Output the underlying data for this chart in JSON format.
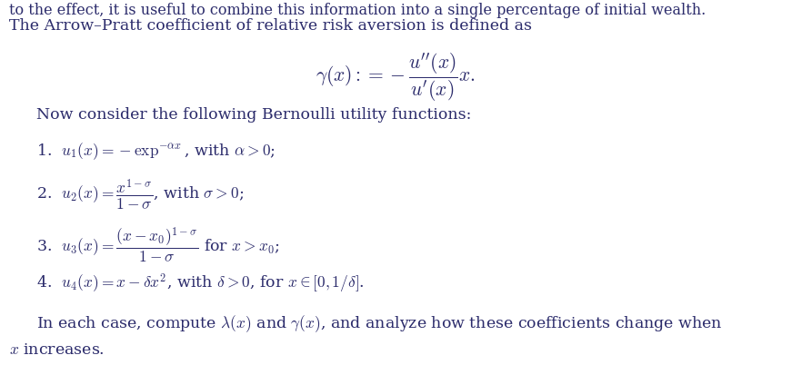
{
  "background_color": "#ffffff",
  "text_color": "#2b2b6b",
  "top_partial_text": "to the effect, it is useful to combine this information into a single percentage of initial wealth.",
  "title_line": "The Arrow–Pratt coefficient of relative risk aversion is defined as",
  "formula": "$\\gamma(x) := -\\dfrac{u''(x)}{u'(x)}x.$",
  "bernoulli_intro": "Now consider the following Bernoulli utility functions:",
  "item1": "1.\\;\\; $u_1(x) = -\\exp^{-\\alpha x}$, with $\\alpha > 0$;",
  "item2": "2.\\;\\; $u_2(x) = \\dfrac{x^{1-\\sigma}}{1-\\sigma}$, with $\\sigma > 0$;",
  "item3": "3.\\;\\; $u_3(x) = \\dfrac{(x-x_0)^{1-\\sigma}}{1-\\sigma}$ for $x > x_0$;",
  "item4": "4.\\;\\; $u_4(x) = x - \\delta x^2$, with $\\delta > 0$, for $x \\in [0, 1/\\delta]$.",
  "footer1": "In each case, compute $\\lambda(x)$ and $\\gamma(x)$, and analyze how these coefficients change when",
  "footer2": "$x$ increases.",
  "font_size_main": 12.5,
  "font_size_formula": 15.5,
  "fig_width": 8.71,
  "fig_height": 4.13,
  "dpi": 100
}
